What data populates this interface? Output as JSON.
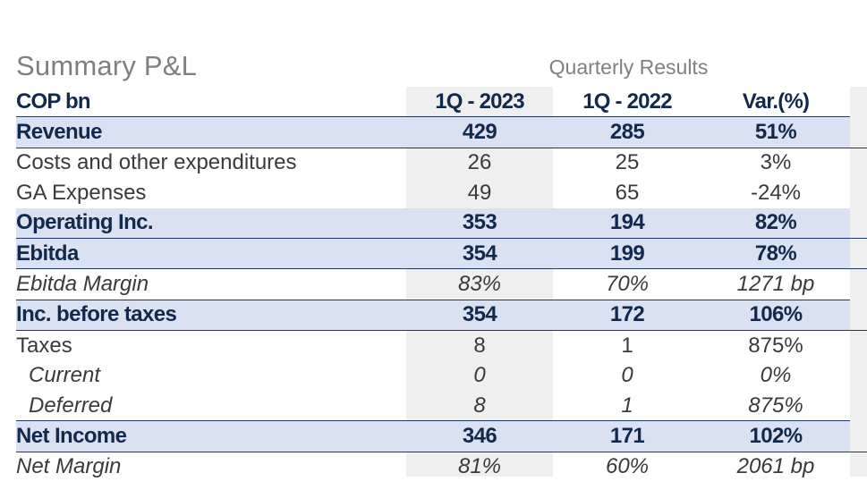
{
  "title": "Summary P&L",
  "subtitle": "Quarterly Results",
  "header": {
    "label": "COP bn",
    "col1": "1Q - 2023",
    "col2": "1Q - 2022",
    "col3": "Var.(%)"
  },
  "rows": [
    {
      "label": "Revenue",
      "v1": "429",
      "v2": "285",
      "v3": "51%"
    },
    {
      "label": "Costs and other expenditures",
      "v1": "26",
      "v2": "25",
      "v3": "3%"
    },
    {
      "label": "GA Expenses",
      "v1": "49",
      "v2": "65",
      "v3": "-24%"
    },
    {
      "label": "Operating Inc.",
      "v1": "353",
      "v2": "194",
      "v3": "82%"
    },
    {
      "label": "Ebitda",
      "v1": "354",
      "v2": "199",
      "v3": "78%"
    },
    {
      "label": "Ebitda Margin",
      "v1": "83%",
      "v2": "70%",
      "v3": "1271 bp"
    },
    {
      "label": "Inc. before taxes",
      "v1": "354",
      "v2": "172",
      "v3": "106%"
    },
    {
      "label": "Taxes",
      "v1": "8",
      "v2": "1",
      "v3": "875%"
    },
    {
      "label": "Current",
      "v1": "0",
      "v2": "0",
      "v3": "0%"
    },
    {
      "label": "Deferred",
      "v1": "8",
      "v2": "1",
      "v3": "875%"
    },
    {
      "label": "Net Income",
      "v1": "346",
      "v2": "171",
      "v3": "102%"
    },
    {
      "label": "Net Margin",
      "v1": "81%",
      "v2": "60%",
      "v3": "2061 bp"
    }
  ],
  "colors": {
    "navy_text": "#13294b",
    "highlight_row": "#d9e1f2",
    "rule": "#1f3864",
    "shaded_column": "#efefef",
    "title_gray": "#7f7f7f"
  }
}
